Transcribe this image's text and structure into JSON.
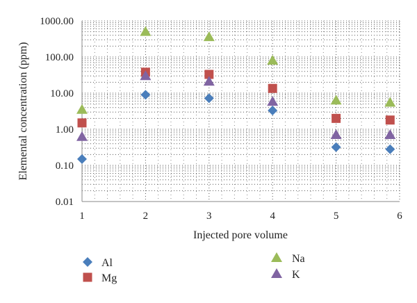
{
  "chart_data": {
    "type": "scatter",
    "xlabel": "Injected pore volume",
    "ylabel": "Elemental concentration (ppm)",
    "y_scale": "log",
    "xlim": [
      1,
      6
    ],
    "ylim": [
      0.01,
      1000
    ],
    "x_ticks": [
      "1",
      "2",
      "3",
      "4",
      "5",
      "6"
    ],
    "y_ticks": [
      "0.01",
      "0.10",
      "1.00",
      "10.00",
      "100.00",
      "1000.00"
    ],
    "grid": "dotted minor and major lines",
    "legend_position": "bottom",
    "series": [
      {
        "name": "Al",
        "marker": "diamond",
        "color": "#4a7ebb",
        "x": [
          1,
          2,
          3,
          4,
          5,
          5.85
        ],
        "y": [
          0.15,
          9,
          7.2,
          3.3,
          0.32,
          0.28
        ]
      },
      {
        "name": "Mg",
        "marker": "square",
        "color": "#c0504d",
        "x": [
          1,
          2,
          3,
          4,
          5,
          5.85
        ],
        "y": [
          1.5,
          38,
          33,
          13.5,
          2,
          1.8
        ]
      },
      {
        "name": "Na",
        "marker": "triangle",
        "color": "#9bbb59",
        "x": [
          1,
          2,
          3,
          4,
          5,
          5.85
        ],
        "y": [
          3.5,
          500,
          360,
          80,
          6.3,
          5.5
        ]
      },
      {
        "name": "K",
        "marker": "triangle",
        "color": "#8064a2",
        "x": [
          1,
          2,
          3,
          4,
          5,
          5.85
        ],
        "y": [
          0.62,
          30,
          21,
          5.8,
          0.7,
          0.7
        ]
      }
    ]
  }
}
